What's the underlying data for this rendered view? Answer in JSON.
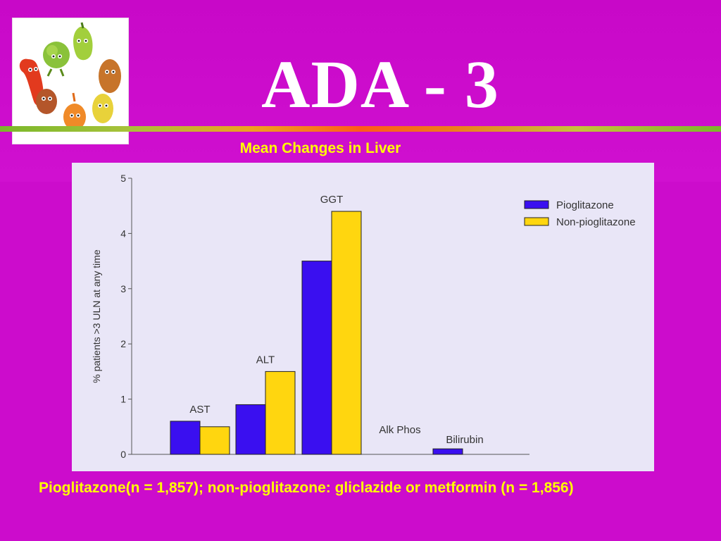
{
  "slide": {
    "title": "ADA - 3",
    "subtitle": "Mean Changes in Liver",
    "caption": "Pioglitazone(n = 1,857); non-pioglitazone: gliclazide or metformin (n = 1,856)"
  },
  "colors": {
    "background": "#cc0ccc",
    "title": "#ffffff",
    "subtitle": "#ffff00",
    "caption": "#ffff00",
    "chart_background": "#e9e6f7",
    "pioglitazone": "#3a0ff0",
    "non_pioglitazone": "#ffd60f"
  },
  "logo": {
    "icon": "cartoon-vegetables-icon"
  },
  "chart_data": {
    "type": "bar",
    "title": "",
    "xlabel": "",
    "ylabel": "% patients >3 ULN at any time",
    "ylim": [
      0,
      5
    ],
    "yticks": [
      "0",
      "1",
      "2",
      "3",
      "4",
      "5"
    ],
    "categories": [
      "AST",
      "ALT",
      "GGT",
      "Alk Phos",
      "Bilirubin"
    ],
    "series": [
      {
        "name": "Pioglitazone",
        "values": [
          0.6,
          0.9,
          3.5,
          0,
          0.1
        ]
      },
      {
        "name": "Non-pioglitazone",
        "values": [
          0.5,
          1.5,
          4.4,
          0,
          0
        ]
      }
    ],
    "legend": "top-right",
    "grid": false
  }
}
